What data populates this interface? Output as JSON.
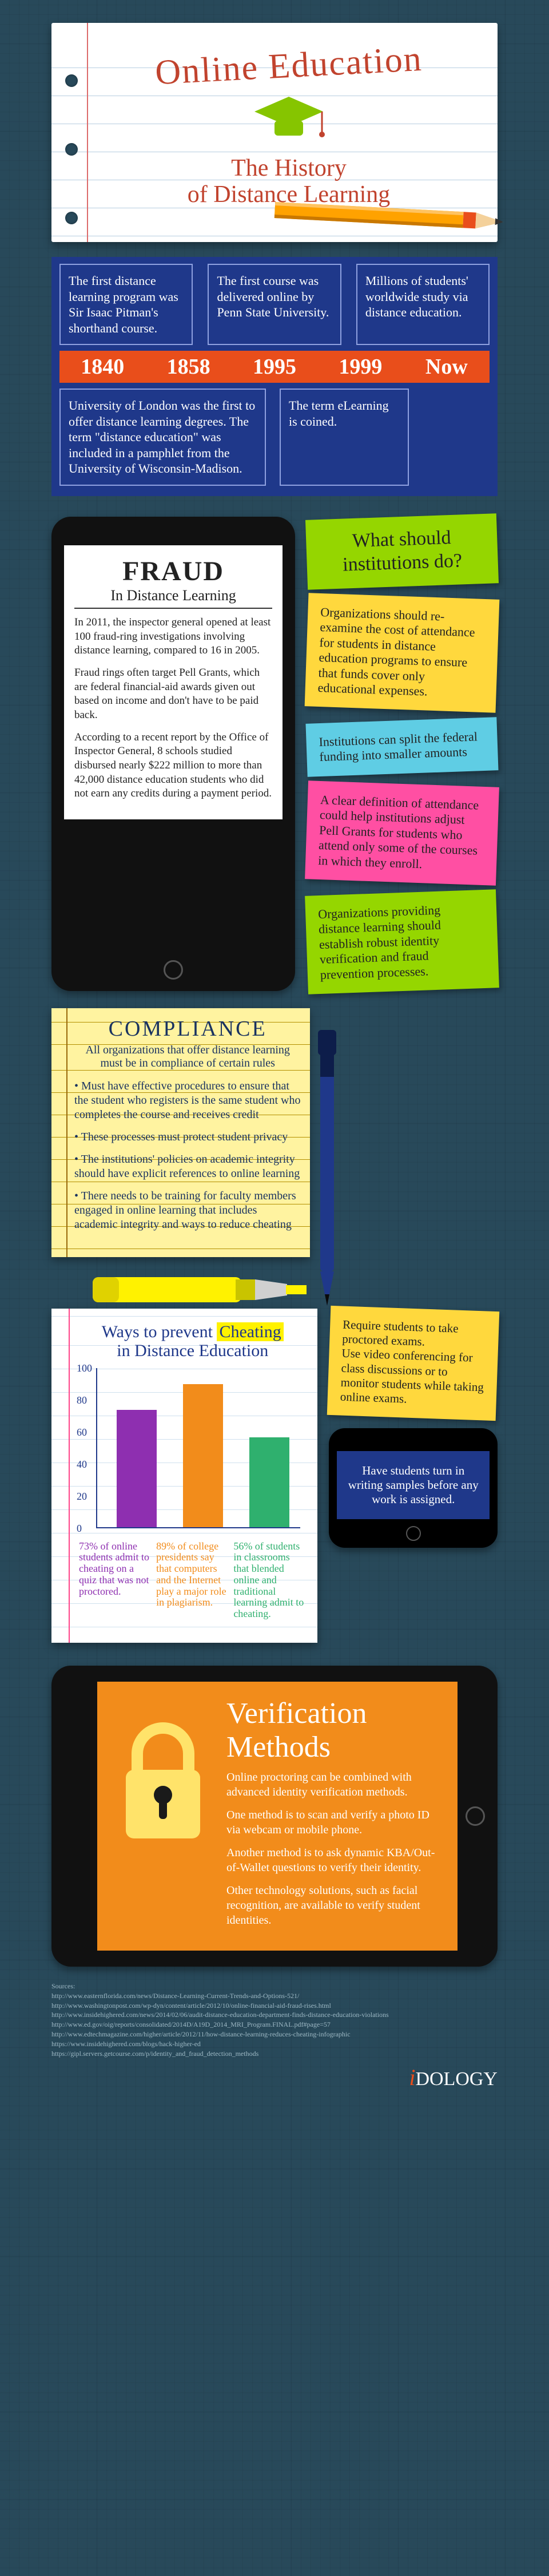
{
  "header": {
    "title": "Online Education",
    "subtitle_line1": "The History",
    "subtitle_line2": "of Distance Learning",
    "cap_color": "#86c500",
    "pencil": {
      "body": "#ffa200",
      "band": "#e94e1b",
      "wood": "#f4d19b",
      "lead": "#333"
    },
    "title_color": "#c1432e"
  },
  "timeline": {
    "bg": "#1f388a",
    "bar_bg": "#e94e1b",
    "top": [
      "The first distance learning program was Sir Isaac Pitman's shorthand course.",
      "The first course was delivered online by Penn State University.",
      "Millions of students' worldwide study via distance education."
    ],
    "years": [
      "1840",
      "1858",
      "1995",
      "1999",
      "Now"
    ],
    "bottom": [
      "University of London was the first to offer distance learning degrees. The term \"distance education\" was included in a pamphlet from the University of Wisconsin-Madison.",
      "The term eLearning is coined."
    ]
  },
  "fraud": {
    "heading": "FRAUD",
    "sub": "In Distance Learning",
    "paras": [
      "In 2011, the inspector general opened at least 100 fraud-ring investigations involving distance learning, compared to 16 in 2005.",
      "Fraud rings often target Pell Grants, which are federal financial-aid awards given out based on income and don't have to be paid back.",
      "According to a recent report by the Office of Inspector General, 8 schools studied disbursed nearly $222 million to more than 42,000 distance education students who did not earn any credits during a payment period."
    ]
  },
  "institution_notes": {
    "q": "What should institutions do?",
    "n1": "Organizations should re-examine the cost of attendance for students in distance education programs to ensure that funds cover only educational expenses.",
    "n2": "Institutions can split the federal funding into smaller amounts",
    "n3": "A clear definition of attendance could help institutions adjust Pell Grants for students who attend only some of the courses in which they enroll.",
    "n4": "Organizations providing distance learning should establish robust identity verification and fraud prevention processes."
  },
  "compliance": {
    "heading": "COMPLIANCE",
    "sub": "All organizations that offer distance learning must be in compliance of certain rules",
    "items": [
      "• Must have effective procedures to ensure that the student who registers is the same student who completes the course and receives credit",
      "• These processes must protect student privacy",
      "• The institutions' policies on academic integrity should have explicit references to online learning",
      "• There needs to be training for faculty members engaged in online learning that includes academic integrity and ways to reduce cheating"
    ],
    "pen_color": "#1f388a",
    "highlighter_color": "#fff200"
  },
  "chart": {
    "title_a": "Ways to prevent ",
    "title_hl": "Cheating",
    "title_b": "in Distance Education",
    "ylim": [
      0,
      100
    ],
    "ytick_step": 20,
    "bars": [
      {
        "value": 73,
        "color": "#8e2fb0",
        "text": "73% of online students admit to cheating on a quiz that was not proctored."
      },
      {
        "value": 89,
        "color": "#f28c1b",
        "text": "89% of college presidents say that computers and the Internet play a major role in plagiarism."
      },
      {
        "value": 56,
        "color": "#2fb06e",
        "text": "56% of students in classrooms that blended online and traditional learning admit to cheating."
      }
    ],
    "sticky": "Require students to take proctored exams.\nUse video conferencing for class discussions or to monitor students while taking online exams.",
    "phone": "Have students turn in writing samples before any work is assigned."
  },
  "verify": {
    "heading": "Verification Methods",
    "paras": [
      "Online proctoring can be combined with advanced identity verification methods.",
      "One method is to scan and verify a photo ID via webcam or mobile phone.",
      "Another method is to ask dynamic KBA/Out-of-Wallet questions to verify their identity.",
      "Other technology solutions, such as facial recognition, are available to verify student identities."
    ],
    "bg": "#f28c1b",
    "lock_color": "#ffe36a"
  },
  "footer": {
    "src_label": "Sources:",
    "sources": [
      "http://www.easternflorida.com/news/Distance-Learning-Current-Trends-and-Options-521/",
      "http://www.washingtonpost.com/wp-dyn/content/article/2012/10/online-financial-aid-fraud-rises.html",
      "http://www.insidehighered.com/news/2014/02/06/audit-distance-education-department-finds-distance-education-violations",
      "http://www.ed.gov/oig/reports/consolidated/2014D/A19D_2014_MRI_Program.FINAL.pdf#page=57",
      "http://www.edtechmagazine.com/higher/article/2012/11/how-distance-learning-reduces-cheating-infographic",
      "https://www.insidehighered.com/blogs/hack-higher-ed",
      "https://gipl.servers.getcourse.com/p/identity_and_fraud_detection_methods"
    ],
    "brand_i": "i",
    "brand_rest": "DOLOGY"
  }
}
